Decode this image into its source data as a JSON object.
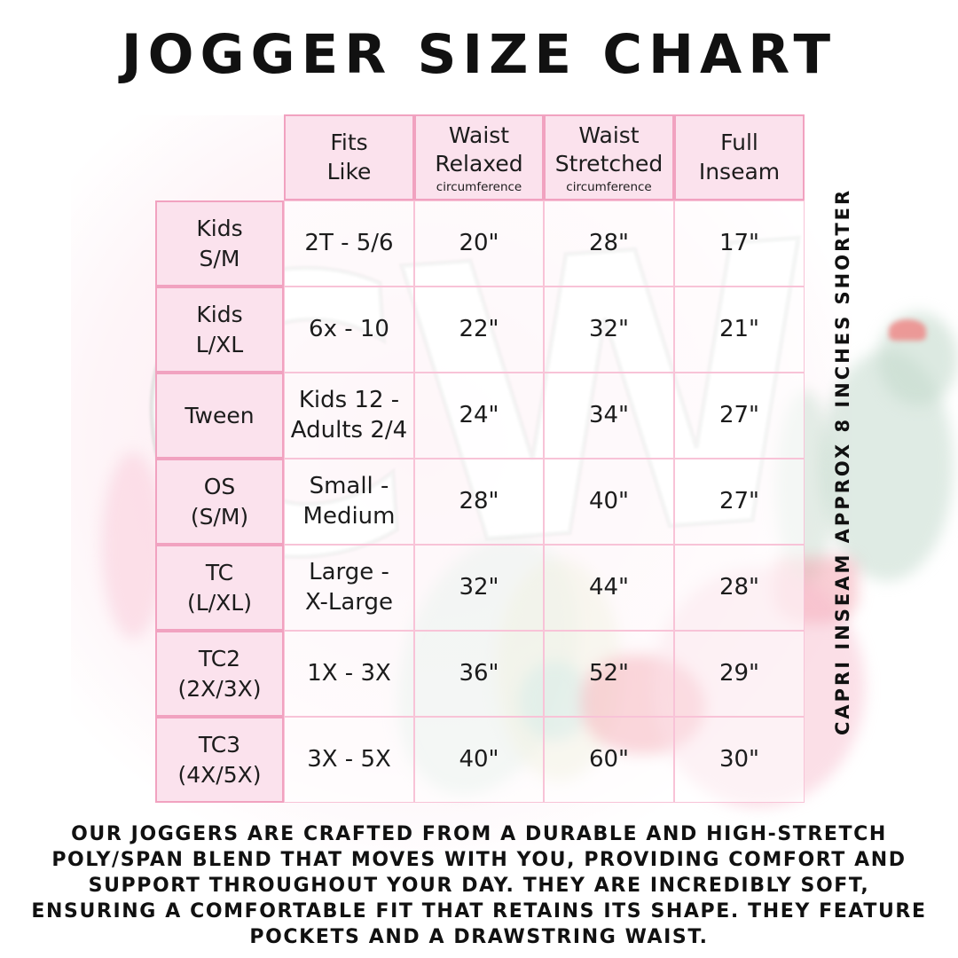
{
  "title": "JOGGER SIZE CHART",
  "side_note": "CAPRI INSEAM APPROX 8 INCHES SHORTER",
  "watermark_text": "CW",
  "colors": {
    "accent_border_strong": "#f1a2c0",
    "accent_border_light": "#f8c3d7",
    "header_fill": "#fbe2ed",
    "text": "#1c1c1c"
  },
  "table": {
    "columns": [
      {
        "title": "Fits\nLike",
        "subtitle": ""
      },
      {
        "title": "Waist\nRelaxed",
        "subtitle": "circumference"
      },
      {
        "title": "Waist\nStretched",
        "subtitle": "circumference"
      },
      {
        "title": "Full\nInseam",
        "subtitle": ""
      }
    ],
    "rows": [
      {
        "label": "Kids\nS/M",
        "cells": [
          "2T - 5/6",
          "20\"",
          "28\"",
          "17\""
        ]
      },
      {
        "label": "Kids\nL/XL",
        "cells": [
          "6x - 10",
          "22\"",
          "32\"",
          "21\""
        ]
      },
      {
        "label": "Tween",
        "cells": [
          "Kids 12 -\nAdults 2/4",
          "24\"",
          "34\"",
          "27\""
        ]
      },
      {
        "label": "OS\n(S/M)",
        "cells": [
          "Small -\nMedium",
          "28\"",
          "40\"",
          "27\""
        ]
      },
      {
        "label": "TC\n(L/XL)",
        "cells": [
          "Large -\nX-Large",
          "32\"",
          "44\"",
          "28\""
        ]
      },
      {
        "label": "TC2\n(2X/3X)",
        "cells": [
          "1X - 3X",
          "36\"",
          "52\"",
          "29\""
        ]
      },
      {
        "label": "TC3\n(4X/5X)",
        "cells": [
          "3X - 5X",
          "40\"",
          "60\"",
          "30\""
        ]
      }
    ]
  },
  "footer": {
    "lines": [
      "OUR JOGGERS ARE CRAFTED FROM A DURABLE AND HIGH-STRETCH",
      "POLY/SPAN BLEND THAT MOVES WITH YOU, PROVIDING COMFORT AND",
      "SUPPORT THROUGHOUT YOUR DAY. THEY ARE INCREDIBLY SOFT,",
      "ENSURING A COMFORTABLE FIT THAT RETAINS ITS SHAPE. THEY FEATURE",
      "POCKETS AND A DRAWSTRING WAIST."
    ]
  }
}
